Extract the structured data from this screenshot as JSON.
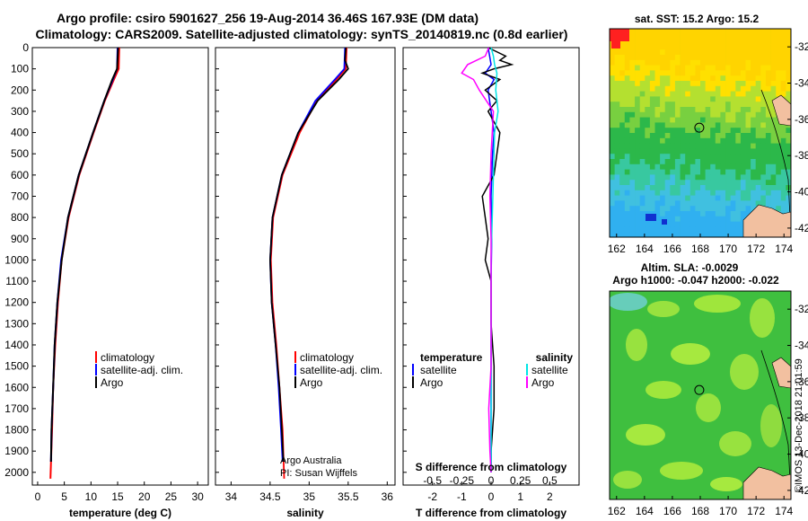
{
  "header": {
    "title_line1": "Argo profile: csiro 5901627_256 19-Aug-2014 36.46S 167.93E (DM data)",
    "title_line2": "Climatology: CARS2009. Satellite-adjusted climatology: synTS_20140819.nc (0.8d earlier)"
  },
  "colors": {
    "climatology": "#ff0000",
    "satellite": "#0000ff",
    "argo": "#000000",
    "sal_satellite": "#00e5e5",
    "sal_argo": "#ff00ff",
    "land": "#f2c0a0"
  },
  "chart_data": [
    {
      "type": "line",
      "name": "temperature-profile",
      "xlabel": "temperature (deg C)",
      "ylabel": "",
      "xlim": [
        -1,
        32
      ],
      "ylim": [
        2060,
        0
      ],
      "xticks": [
        "0",
        "5",
        "10",
        "15",
        "20",
        "25",
        "30"
      ],
      "yticks": [
        "0",
        "100",
        "200",
        "300",
        "400",
        "500",
        "600",
        "700",
        "800",
        "900",
        "1000",
        "1100",
        "1200",
        "1300",
        "1400",
        "1500",
        "1600",
        "1700",
        "1800",
        "1900",
        "2000"
      ],
      "legend": [
        "climatology",
        "satellite-adj. clim.",
        "Argo"
      ],
      "series": [
        {
          "name": "climatology",
          "pressure": [
            0,
            100,
            150,
            250,
            400,
            600,
            800,
            1000,
            1200,
            1400,
            1600,
            1800,
            1950,
            2030
          ],
          "values": [
            15.3,
            15.2,
            14.3,
            12.6,
            10.5,
            7.8,
            5.8,
            4.5,
            3.8,
            3.3,
            2.9,
            2.7,
            2.5,
            2.4
          ]
        },
        {
          "name": "satellite-adj. clim.",
          "pressure": [
            0,
            100,
            150,
            250,
            400,
            600,
            800,
            1000,
            1200,
            1400,
            1600,
            1800,
            1950
          ],
          "values": [
            15.0,
            14.9,
            14.1,
            12.5,
            10.4,
            7.7,
            5.7,
            4.4,
            3.7,
            3.2,
            2.9,
            2.6,
            2.5
          ]
        },
        {
          "name": "Argo",
          "pressure": [
            0,
            100,
            150,
            250,
            400,
            600,
            800,
            1000,
            1200,
            1400,
            1600,
            1800,
            1950
          ],
          "values": [
            15.1,
            14.9,
            14.0,
            12.5,
            10.4,
            7.7,
            5.7,
            4.5,
            3.7,
            3.2,
            2.9,
            2.6,
            2.5
          ]
        }
      ]
    },
    {
      "type": "line",
      "name": "salinity-profile",
      "xlabel": "salinity",
      "ylabel": "",
      "xlim": [
        33.8,
        36.1
      ],
      "ylim": [
        2060,
        0
      ],
      "xticks": [
        "34",
        "34.5",
        "35",
        "35.5",
        "36"
      ],
      "legend": [
        "climatology",
        "satellite-adj. clim.",
        "Argo"
      ],
      "annotation": [
        "Argo Australia",
        "PI: Susan Wijffels"
      ],
      "series": [
        {
          "name": "climatology",
          "pressure": [
            0,
            100,
            150,
            250,
            400,
            600,
            800,
            1000,
            1200,
            1400,
            1600,
            1800,
            2030
          ],
          "values": [
            35.48,
            35.47,
            35.35,
            35.1,
            34.88,
            34.66,
            34.54,
            34.51,
            34.53,
            34.58,
            34.62,
            34.66,
            34.68
          ]
        },
        {
          "name": "satellite-adj. clim.",
          "pressure": [
            0,
            100,
            150,
            250,
            400,
            600,
            800,
            1000,
            1200,
            1400,
            1600,
            1800,
            1950
          ],
          "values": [
            35.46,
            35.45,
            35.33,
            35.08,
            34.86,
            34.65,
            34.53,
            34.5,
            34.52,
            34.57,
            34.61,
            34.64,
            34.66
          ]
        },
        {
          "name": "Argo",
          "pressure": [
            0,
            60,
            100,
            150,
            250,
            400,
            600,
            800,
            1000,
            1200,
            1400,
            1600,
            1800,
            1950
          ],
          "values": [
            35.47,
            35.46,
            35.5,
            35.38,
            35.11,
            34.86,
            34.65,
            34.53,
            34.5,
            34.52,
            34.57,
            34.62,
            34.65,
            34.67
          ]
        }
      ]
    },
    {
      "type": "line",
      "name": "difference-profile",
      "xlabel": "T difference from climatology",
      "top_label": "S difference from climatology",
      "xlim": [
        -3,
        3
      ],
      "ylim": [
        2060,
        0
      ],
      "xticks": [
        "-2",
        "-1",
        "0",
        "1",
        "2"
      ],
      "sticks": [
        "-0.5",
        "-0.25",
        "0",
        "0.25",
        "0.5"
      ],
      "legend_left_title": "temperature",
      "legend_right_title": "salinity",
      "legend_left": [
        "satellite",
        "Argo"
      ],
      "legend_right": [
        "satellite",
        "Argo"
      ],
      "series": [
        {
          "name": "T satellite",
          "pressure": [
            0,
            40,
            80,
            120,
            150,
            200,
            300,
            400,
            500,
            700,
            900,
            1100,
            1300,
            1500,
            1700,
            1900,
            2000
          ],
          "values": [
            -0.1,
            -0.05,
            0.0,
            -0.2,
            0.1,
            -0.1,
            0.0,
            0.1,
            0.05,
            0.0,
            0.02,
            0.0,
            0.0,
            0.0,
            0.0,
            0.0,
            0.0
          ]
        },
        {
          "name": "T Argo",
          "pressure": [
            0,
            40,
            60,
            80,
            100,
            120,
            150,
            200,
            250,
            300,
            400,
            500,
            600,
            700,
            800,
            900,
            1000,
            1100,
            1300,
            1500,
            1700,
            1900,
            2000
          ],
          "values": [
            -0.1,
            0.5,
            0.3,
            0.7,
            0.1,
            -0.3,
            0.3,
            -0.2,
            0.2,
            -0.1,
            0.3,
            0.2,
            0.1,
            -0.3,
            -0.2,
            -0.1,
            -0.2,
            0.0,
            0.0,
            0.1,
            0.1,
            0.0,
            0.0
          ]
        },
        {
          "name": "S satellite",
          "pressure": [
            0,
            40,
            80,
            120,
            200,
            300,
            400,
            600,
            800,
            1000,
            1200,
            1400,
            1600,
            1800,
            2000
          ],
          "values": [
            0.0,
            0.02,
            0.03,
            0.05,
            0.04,
            0.06,
            0.03,
            0.02,
            0.01,
            0.0,
            0.0,
            0.0,
            0.0,
            0.0,
            0.0
          ]
        },
        {
          "name": "S Argo",
          "pressure": [
            0,
            40,
            80,
            120,
            150,
            200,
            300,
            500,
            700,
            900,
            1100,
            1300,
            1500,
            1700,
            1900,
            2000
          ],
          "values": [
            -0.02,
            -0.05,
            -0.2,
            -0.25,
            -0.15,
            -0.1,
            0.02,
            0.0,
            -0.01,
            0.0,
            0.0,
            0.0,
            0.0,
            -0.02,
            -0.01,
            0.0
          ]
        }
      ]
    },
    {
      "type": "heatmap",
      "name": "sst-map",
      "title": "sat. SST: 15.2  Argo: 15.2",
      "xlim": [
        161.5,
        174.5
      ],
      "ylim": [
        -42.5,
        -31
      ],
      "xticks": [
        "162",
        "164",
        "166",
        "168",
        "170",
        "172",
        "174"
      ],
      "yticks": [
        "-32",
        "-34",
        "-36",
        "-38",
        "-40",
        "-42"
      ],
      "marker": {
        "lon": 167.93,
        "lat": -36.46
      }
    },
    {
      "type": "heatmap",
      "name": "sla-map",
      "title_line1": "Altim. SLA: -0.0029",
      "title_line2": "Argo h1000: -0.047 h2000: -0.022",
      "xlim": [
        161.5,
        174.5
      ],
      "ylim": [
        -42.5,
        -31
      ],
      "xticks": [
        "162",
        "164",
        "166",
        "168",
        "170",
        "172",
        "174"
      ],
      "yticks": [
        "-32",
        "-34",
        "-36",
        "-38",
        "-40",
        "-42"
      ],
      "marker": {
        "lon": 167.93,
        "lat": -36.46
      }
    }
  ],
  "footer": {
    "imos_stamp": "©IMOS 13-Dec-2018 21:01:59"
  }
}
